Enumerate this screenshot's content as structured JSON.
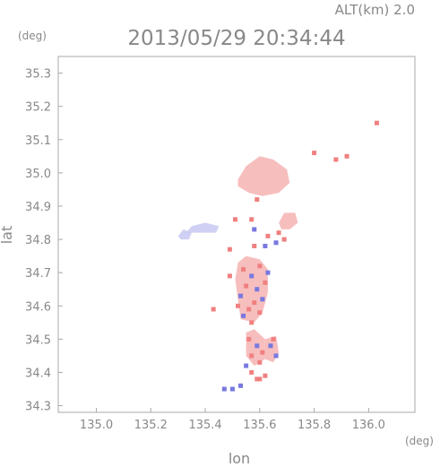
{
  "header": {
    "alt_label": "ALT(km) 2.0",
    "timestamp": "2013/05/29 20:34:44"
  },
  "chart_data": {
    "type": "scatter",
    "title": "2013/05/29 20:34:44",
    "subtitle": "ALT(km) 2.0",
    "xlabel": "lon",
    "ylabel": "lat",
    "x_unit": "(deg)",
    "y_unit": "(deg)",
    "xlim": [
      134.86,
      136.17
    ],
    "ylim": [
      34.28,
      35.35
    ],
    "xticks": [
      "135.0",
      "135.2",
      "135.4",
      "135.6",
      "135.8",
      "136.0"
    ],
    "yticks": [
      "34.3",
      "34.4",
      "34.5",
      "34.6",
      "34.7",
      "34.8",
      "34.9",
      "35.0",
      "35.1",
      "35.2",
      "35.3"
    ],
    "grid": false,
    "colors": {
      "positive": "#f08080",
      "positive_light": "#f6b3b3",
      "negative": "#7878e0",
      "negative_light": "#c8c8f2"
    },
    "regions": [
      {
        "sign": "positive_light",
        "polygon": [
          [
            135.52,
            34.98
          ],
          [
            135.55,
            35.02
          ],
          [
            135.6,
            35.05
          ],
          [
            135.65,
            35.04
          ],
          [
            135.7,
            35.01
          ],
          [
            135.71,
            34.97
          ],
          [
            135.67,
            34.94
          ],
          [
            135.61,
            34.93
          ],
          [
            135.56,
            34.94
          ],
          [
            135.52,
            34.96
          ]
        ]
      },
      {
        "sign": "positive_light",
        "polygon": [
          [
            135.67,
            34.85
          ],
          [
            135.69,
            34.88
          ],
          [
            135.73,
            34.88
          ],
          [
            135.74,
            34.85
          ],
          [
            135.71,
            34.83
          ],
          [
            135.68,
            34.83
          ]
        ]
      },
      {
        "sign": "negative_light",
        "polygon": [
          [
            135.33,
            34.82
          ],
          [
            135.35,
            34.84
          ],
          [
            135.4,
            34.85
          ],
          [
            135.45,
            34.84
          ],
          [
            135.44,
            34.82
          ],
          [
            135.38,
            34.82
          ]
        ]
      },
      {
        "sign": "negative_light",
        "polygon": [
          [
            135.3,
            34.81
          ],
          [
            135.32,
            34.83
          ],
          [
            135.35,
            34.82
          ],
          [
            135.34,
            34.8
          ],
          [
            135.31,
            34.8
          ]
        ]
      },
      {
        "sign": "positive_light",
        "polygon": [
          [
            135.52,
            34.73
          ],
          [
            135.55,
            34.75
          ],
          [
            135.6,
            34.74
          ],
          [
            135.63,
            34.71
          ],
          [
            135.63,
            34.64
          ],
          [
            135.61,
            34.58
          ],
          [
            135.58,
            34.55
          ],
          [
            135.53,
            34.56
          ],
          [
            135.52,
            34.62
          ],
          [
            135.51,
            34.68
          ]
        ]
      },
      {
        "sign": "positive_light",
        "polygon": [
          [
            135.55,
            34.52
          ],
          [
            135.58,
            34.53
          ],
          [
            135.62,
            34.5
          ],
          [
            135.62,
            34.44
          ],
          [
            135.58,
            34.42
          ],
          [
            135.55,
            34.45
          ]
        ]
      },
      {
        "sign": "positive_light",
        "polygon": [
          [
            135.62,
            34.5
          ],
          [
            135.66,
            34.51
          ],
          [
            135.67,
            34.46
          ],
          [
            135.65,
            34.43
          ],
          [
            135.62,
            34.44
          ]
        ]
      }
    ],
    "points": [
      {
        "x": 135.54,
        "y": 34.71,
        "sign": "positive"
      },
      {
        "x": 135.57,
        "y": 34.69,
        "sign": "negative"
      },
      {
        "x": 135.6,
        "y": 34.72,
        "sign": "positive"
      },
      {
        "x": 135.55,
        "y": 34.66,
        "sign": "positive"
      },
      {
        "x": 135.59,
        "y": 34.65,
        "sign": "negative"
      },
      {
        "x": 135.62,
        "y": 34.67,
        "sign": "positive"
      },
      {
        "x": 135.53,
        "y": 34.63,
        "sign": "negative"
      },
      {
        "x": 135.58,
        "y": 34.61,
        "sign": "positive"
      },
      {
        "x": 135.61,
        "y": 34.62,
        "sign": "negative"
      },
      {
        "x": 135.56,
        "y": 34.59,
        "sign": "positive"
      },
      {
        "x": 135.6,
        "y": 34.58,
        "sign": "positive"
      },
      {
        "x": 135.54,
        "y": 34.57,
        "sign": "negative"
      },
      {
        "x": 135.57,
        "y": 34.55,
        "sign": "positive"
      },
      {
        "x": 135.52,
        "y": 34.6,
        "sign": "positive"
      },
      {
        "x": 135.63,
        "y": 34.7,
        "sign": "negative"
      },
      {
        "x": 135.56,
        "y": 34.5,
        "sign": "positive"
      },
      {
        "x": 135.59,
        "y": 34.48,
        "sign": "negative"
      },
      {
        "x": 135.61,
        "y": 34.46,
        "sign": "positive"
      },
      {
        "x": 135.57,
        "y": 34.45,
        "sign": "positive"
      },
      {
        "x": 135.64,
        "y": 34.48,
        "sign": "negative"
      },
      {
        "x": 135.66,
        "y": 34.45,
        "sign": "negative"
      },
      {
        "x": 135.6,
        "y": 34.43,
        "sign": "positive"
      },
      {
        "x": 135.55,
        "y": 34.42,
        "sign": "negative"
      },
      {
        "x": 135.65,
        "y": 34.5,
        "sign": "positive"
      },
      {
        "x": 135.57,
        "y": 34.4,
        "sign": "positive"
      },
      {
        "x": 135.59,
        "y": 34.38,
        "sign": "positive"
      },
      {
        "x": 135.6,
        "y": 34.38,
        "sign": "positive"
      },
      {
        "x": 135.5,
        "y": 34.35,
        "sign": "negative"
      },
      {
        "x": 135.47,
        "y": 34.35,
        "sign": "negative"
      },
      {
        "x": 135.53,
        "y": 34.36,
        "sign": "negative"
      },
      {
        "x": 135.62,
        "y": 34.39,
        "sign": "positive"
      },
      {
        "x": 135.58,
        "y": 34.83,
        "sign": "negative"
      },
      {
        "x": 135.63,
        "y": 34.81,
        "sign": "positive"
      },
      {
        "x": 135.66,
        "y": 34.79,
        "sign": "negative"
      },
      {
        "x": 135.69,
        "y": 34.8,
        "sign": "positive"
      },
      {
        "x": 135.62,
        "y": 34.78,
        "sign": "negative"
      },
      {
        "x": 135.67,
        "y": 34.82,
        "sign": "positive"
      },
      {
        "x": 135.57,
        "y": 34.86,
        "sign": "positive"
      },
      {
        "x": 135.51,
        "y": 34.86,
        "sign": "positive"
      },
      {
        "x": 135.59,
        "y": 34.92,
        "sign": "positive"
      },
      {
        "x": 135.8,
        "y": 35.06,
        "sign": "positive"
      },
      {
        "x": 135.88,
        "y": 35.04,
        "sign": "positive"
      },
      {
        "x": 135.92,
        "y": 35.05,
        "sign": "positive"
      },
      {
        "x": 136.03,
        "y": 35.15,
        "sign": "positive"
      },
      {
        "x": 135.49,
        "y": 34.77,
        "sign": "positive"
      },
      {
        "x": 135.43,
        "y": 34.59,
        "sign": "positive"
      },
      {
        "x": 135.49,
        "y": 34.69,
        "sign": "positive"
      },
      {
        "x": 135.58,
        "y": 34.78,
        "sign": "positive"
      }
    ]
  }
}
